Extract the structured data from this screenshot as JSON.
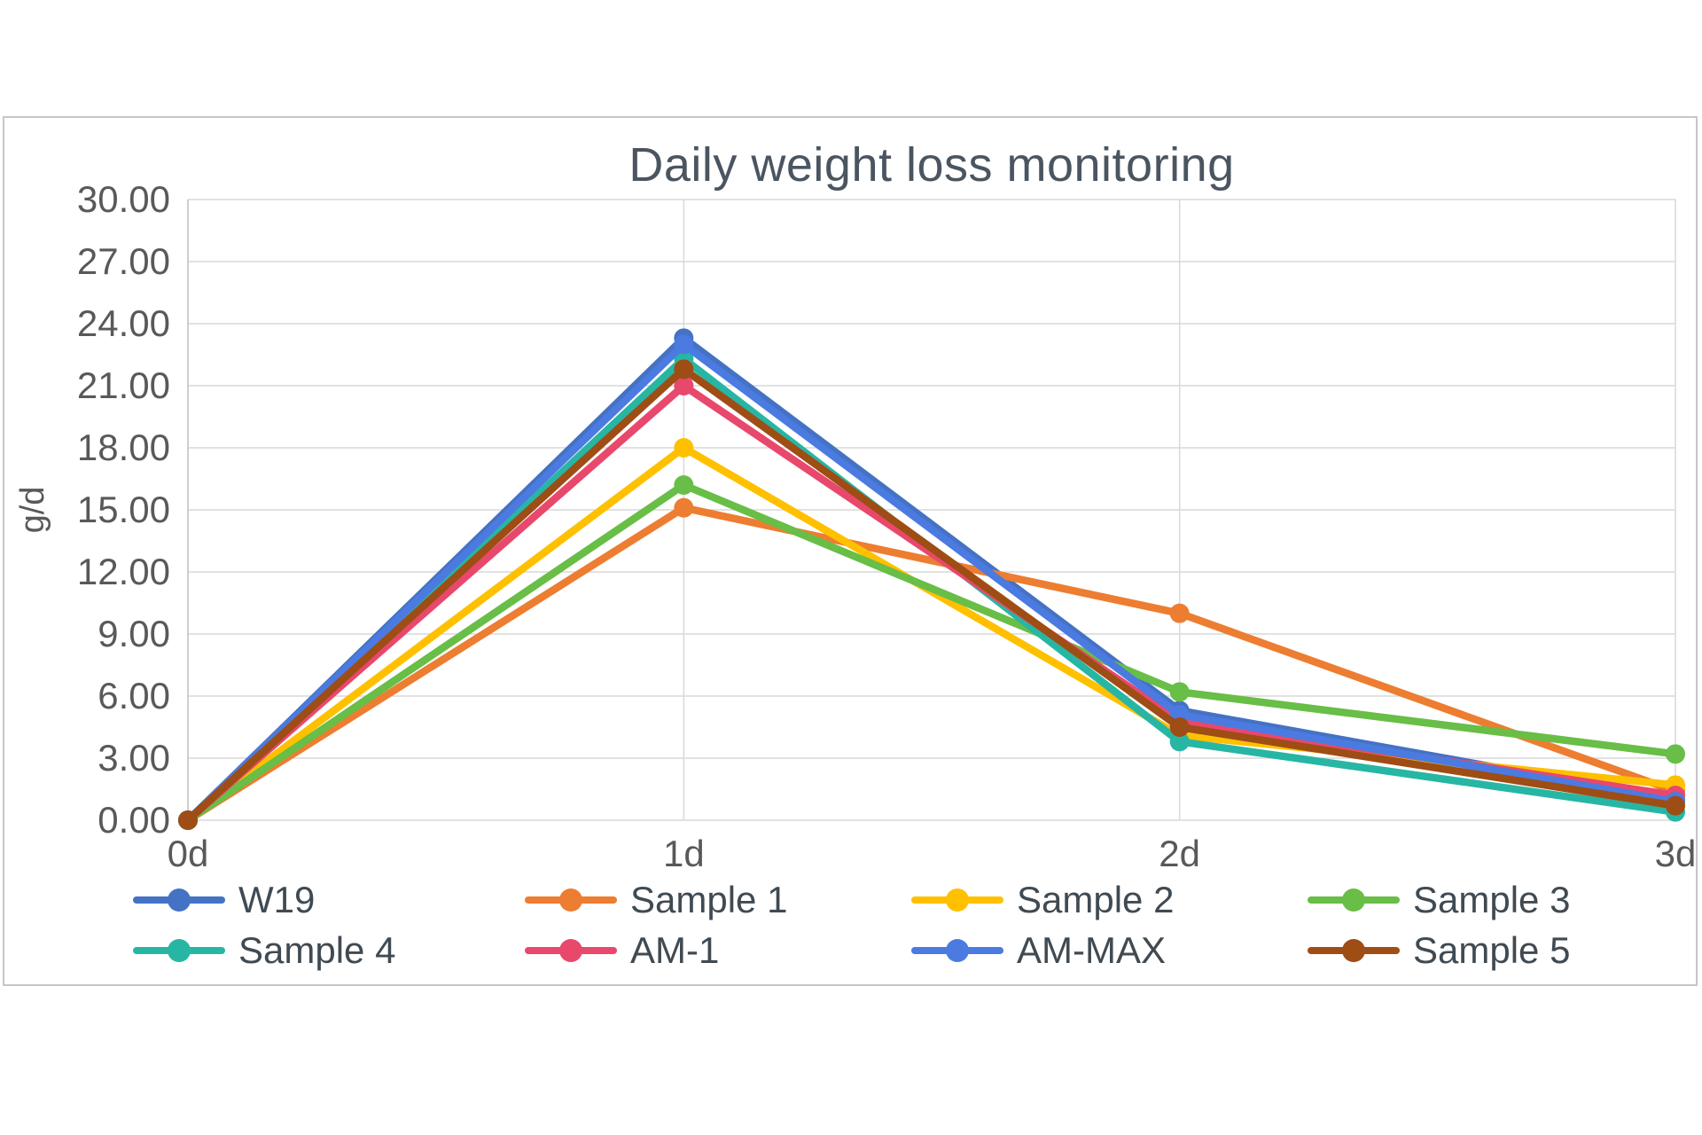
{
  "chart_data": {
    "type": "line",
    "title": "Daily weight loss monitoring",
    "ylabel": "g/d",
    "xlabel": "",
    "categories": [
      "0d",
      "1d",
      "2d",
      "3d"
    ],
    "ylim": [
      0,
      30
    ],
    "ytick_step": 3,
    "ytick_labels": [
      "0.00",
      "3.00",
      "6.00",
      "9.00",
      "12.00",
      "15.00",
      "18.00",
      "21.00",
      "24.00",
      "27.00",
      "30.00"
    ],
    "grid": true,
    "legend_position": "bottom",
    "legend_rows": [
      [
        "W19",
        "Sample 1",
        "Sample 2",
        "Sample 3"
      ],
      [
        "Sample 4",
        "AM-1",
        "AM-MAX",
        "Sample 5"
      ]
    ],
    "series": [
      {
        "name": "W19",
        "color": "#4472C4",
        "values": [
          0.0,
          23.3,
          5.3,
          1.0
        ]
      },
      {
        "name": "Sample 1",
        "color": "#ED7D31",
        "values": [
          0.0,
          15.1,
          10.0,
          1.4
        ]
      },
      {
        "name": "Sample 2",
        "color": "#FFC000",
        "values": [
          0.0,
          18.0,
          4.1,
          1.7
        ]
      },
      {
        "name": "Sample 3",
        "color": "#68BE46",
        "values": [
          0.0,
          16.2,
          6.2,
          3.2
        ]
      },
      {
        "name": "Sample 4",
        "color": "#27B6A3",
        "values": [
          0.0,
          22.3,
          3.8,
          0.4
        ]
      },
      {
        "name": "AM-1",
        "color": "#E8486C",
        "values": [
          0.0,
          21.0,
          4.8,
          1.2
        ]
      },
      {
        "name": "AM-MAX",
        "color": "#4B7BE0",
        "values": [
          0.0,
          23.0,
          5.1,
          0.9
        ]
      },
      {
        "name": "Sample 5",
        "color": "#9E4D15",
        "values": [
          0.0,
          21.8,
          4.5,
          0.7
        ]
      }
    ],
    "style": {
      "grid_color": "#D9D9D9",
      "axis_color": "#BFBFBF",
      "tick_label_color": "#595959",
      "line_width": 8.5,
      "marker_radius": 11
    }
  }
}
